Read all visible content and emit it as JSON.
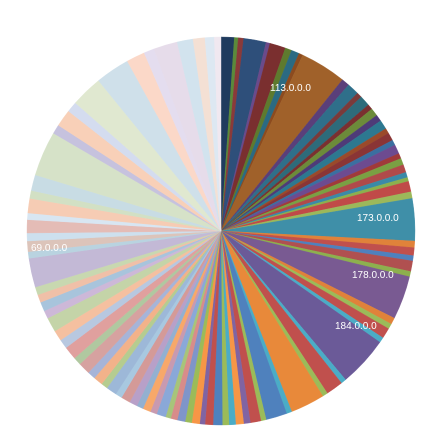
{
  "chart_data": {
    "type": "pie",
    "title": "",
    "start_angle_deg": 0,
    "direction": "clockwise",
    "labeled_slices": [
      {
        "label": "113.0.0.0",
        "approx_share_pct": 3.5,
        "color": "#a0612a"
      },
      {
        "label": "173.0.0.0",
        "approx_share_pct": 3.2,
        "color": "#3f8fa8"
      },
      {
        "label": "178.0.0.0",
        "approx_share_pct": 3.3,
        "color": "#795a92"
      },
      {
        "label": "184.0.0.0",
        "approx_share_pct": 3.8,
        "color": "#6b5a98"
      },
      {
        "label": "69.0.0.0",
        "approx_share_pct": 2.2,
        "color": "#c3b9d6"
      }
    ],
    "slices": [
      {
        "v": 1.0,
        "c": "#1f3b5e"
      },
      {
        "v": 0.3,
        "c": "#5b8a3b"
      },
      {
        "v": 0.4,
        "c": "#8a3a3a"
      },
      {
        "v": 1.7,
        "c": "#2e4f7a"
      },
      {
        "v": 0.3,
        "c": "#6b4a8a"
      },
      {
        "v": 1.2,
        "c": "#7a2f2f"
      },
      {
        "v": 0.5,
        "c": "#5e7a2e"
      },
      {
        "v": 0.6,
        "c": "#2b6a82"
      },
      {
        "v": 0.3,
        "c": "#8c4b1f"
      },
      {
        "v": 3.5,
        "c": "#a0612a",
        "label": "113.0.0.0"
      },
      {
        "v": 0.6,
        "c": "#5a3f7a"
      },
      {
        "v": 0.9,
        "c": "#2f6f8a"
      },
      {
        "v": 0.4,
        "c": "#7b3a3a"
      },
      {
        "v": 0.8,
        "c": "#2e6b7a"
      },
      {
        "v": 0.4,
        "c": "#7a3030"
      },
      {
        "v": 0.6,
        "c": "#6c8b3a"
      },
      {
        "v": 0.5,
        "c": "#4e3b78"
      },
      {
        "v": 0.7,
        "c": "#2d7890"
      },
      {
        "v": 0.4,
        "c": "#9a4a2a"
      },
      {
        "v": 0.6,
        "c": "#8a3535"
      },
      {
        "v": 0.4,
        "c": "#3b6fa0"
      },
      {
        "v": 0.7,
        "c": "#6d4b90"
      },
      {
        "v": 0.4,
        "c": "#a03a3a"
      },
      {
        "v": 0.5,
        "c": "#7aa043"
      },
      {
        "v": 0.6,
        "c": "#b04a4a"
      },
      {
        "v": 0.4,
        "c": "#3a8aa8"
      },
      {
        "v": 0.3,
        "c": "#8bb04e"
      },
      {
        "v": 0.8,
        "c": "#c04a48"
      },
      {
        "v": 0.5,
        "c": "#9cb85a"
      },
      {
        "v": 3.2,
        "c": "#3f8fa8",
        "label": "173.0.0.0"
      },
      {
        "v": 0.5,
        "c": "#e0823a"
      },
      {
        "v": 0.6,
        "c": "#c0504d"
      },
      {
        "v": 0.4,
        "c": "#4f81bd"
      },
      {
        "v": 0.8,
        "c": "#b05050"
      },
      {
        "v": 0.4,
        "c": "#8db04e"
      },
      {
        "v": 3.3,
        "c": "#795a92",
        "label": "178.0.0.0"
      },
      {
        "v": 0.5,
        "c": "#e0823a"
      },
      {
        "v": 0.4,
        "c": "#9bbb59"
      },
      {
        "v": 0.8,
        "c": "#c0504d"
      },
      {
        "v": 0.4,
        "c": "#4bacc6"
      },
      {
        "v": 3.8,
        "c": "#6b5a98",
        "label": "184.0.0.0"
      },
      {
        "v": 0.4,
        "c": "#4bacc6"
      },
      {
        "v": 1.3,
        "c": "#c0504d"
      },
      {
        "v": 0.4,
        "c": "#9bbb59"
      },
      {
        "v": 2.6,
        "c": "#e8893a"
      },
      {
        "v": 0.4,
        "c": "#4bacc6"
      },
      {
        "v": 1.6,
        "c": "#4f81bd"
      },
      {
        "v": 0.4,
        "c": "#9bbb59"
      },
      {
        "v": 0.8,
        "c": "#c0504d"
      },
      {
        "v": 0.5,
        "c": "#8064a2"
      },
      {
        "v": 0.6,
        "c": "#f79646"
      },
      {
        "v": 0.5,
        "c": "#4bacc6"
      },
      {
        "v": 0.5,
        "c": "#9bbb59"
      },
      {
        "v": 0.7,
        "c": "#4f81bd"
      },
      {
        "v": 0.6,
        "c": "#c0504d"
      },
      {
        "v": 0.4,
        "c": "#8064a2"
      },
      {
        "v": 0.6,
        "c": "#f79646"
      },
      {
        "v": 0.5,
        "c": "#9bbb59"
      },
      {
        "v": 0.6,
        "c": "#7f95c9"
      },
      {
        "v": 0.5,
        "c": "#d88c8a"
      },
      {
        "v": 0.4,
        "c": "#a7c47a"
      },
      {
        "v": 0.7,
        "c": "#8aa8d8"
      },
      {
        "v": 0.5,
        "c": "#c89ab0"
      },
      {
        "v": 0.6,
        "c": "#f7a86a"
      },
      {
        "v": 0.5,
        "c": "#93b0d0"
      },
      {
        "v": 0.6,
        "c": "#b8a0c8"
      },
      {
        "v": 0.7,
        "c": "#d49a98"
      },
      {
        "v": 0.5,
        "c": "#a8c8e0"
      },
      {
        "v": 0.8,
        "c": "#9db8d8"
      },
      {
        "v": 0.5,
        "c": "#b5cc90"
      },
      {
        "v": 0.7,
        "c": "#f2b28a"
      },
      {
        "v": 0.6,
        "c": "#a6b4d8"
      },
      {
        "v": 0.9,
        "c": "#d6a2a0"
      },
      {
        "v": 0.6,
        "c": "#b0c8a0"
      },
      {
        "v": 1.0,
        "c": "#e0a09e"
      },
      {
        "v": 0.7,
        "c": "#b8c8e0"
      },
      {
        "v": 0.8,
        "c": "#f5c0a0"
      },
      {
        "v": 1.1,
        "c": "#c4d4a8"
      },
      {
        "v": 0.6,
        "c": "#cdb8d8"
      },
      {
        "v": 0.7,
        "c": "#a8c4dc"
      },
      {
        "v": 0.6,
        "c": "#f0c0a8"
      },
      {
        "v": 0.6,
        "c": "#c8d8b0"
      },
      {
        "v": 2.2,
        "c": "#c3b9d6",
        "label": "69.0.0.0"
      },
      {
        "v": 0.5,
        "c": "#b9d3e0"
      },
      {
        "v": 0.8,
        "c": "#dcc4ba"
      },
      {
        "v": 0.6,
        "c": "#cde0ee"
      },
      {
        "v": 1.0,
        "c": "#e4bcb6"
      },
      {
        "v": 0.5,
        "c": "#d8e6f2"
      },
      {
        "v": 1.1,
        "c": "#f6ccb4"
      },
      {
        "v": 0.6,
        "c": "#d2e0c4"
      },
      {
        "v": 1.2,
        "c": "#c8dce4"
      },
      {
        "v": 3.4,
        "c": "#d6e2c8"
      },
      {
        "v": 0.7,
        "c": "#c6c2de"
      },
      {
        "v": 1.3,
        "c": "#f8d0b8"
      },
      {
        "v": 0.8,
        "c": "#d4dcef"
      },
      {
        "v": 2.4,
        "c": "#e0e8d0"
      },
      {
        "v": 2.6,
        "c": "#cfe0ea"
      },
      {
        "v": 1.4,
        "c": "#fbd8c8"
      },
      {
        "v": 0.8,
        "c": "#e4ddef"
      },
      {
        "v": 1.8,
        "c": "#e6dcea"
      },
      {
        "v": 1.2,
        "c": "#d2e3ee"
      },
      {
        "v": 0.9,
        "c": "#f4e0d4"
      },
      {
        "v": 0.7,
        "c": "#dde8f2"
      },
      {
        "v": 0.5,
        "c": "#f0e8f0"
      }
    ],
    "colors": {
      "label_text": "#ffffff",
      "background": "#ffffff"
    }
  }
}
